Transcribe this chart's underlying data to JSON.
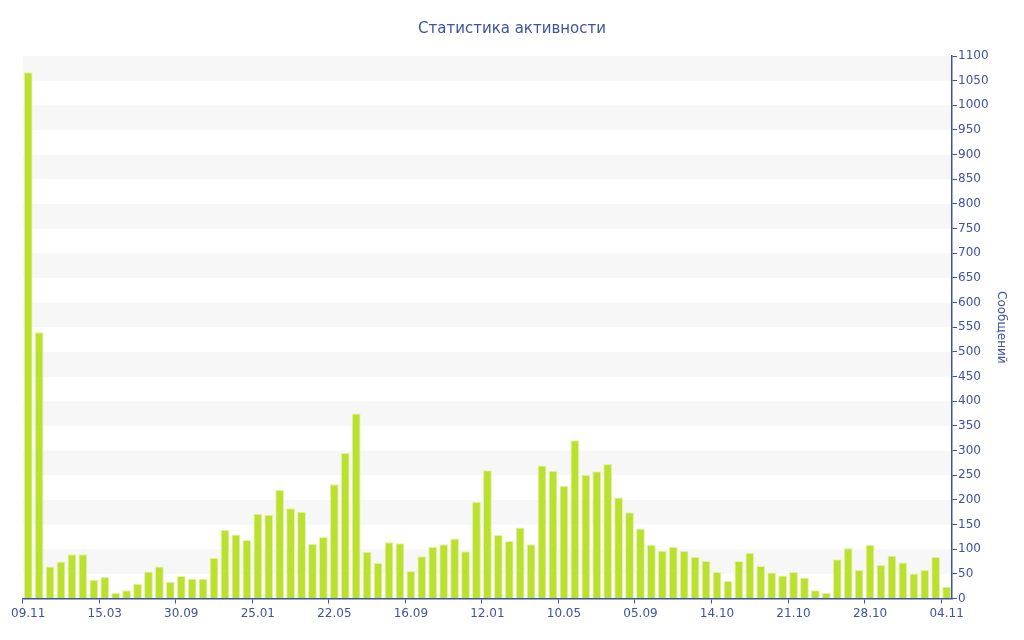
{
  "chart_data": {
    "type": "bar",
    "title": "Статистика активности",
    "ylabel": "Сообщений",
    "categories": [
      "09.11",
      null,
      null,
      null,
      null,
      null,
      null,
      "15.03",
      null,
      null,
      null,
      null,
      null,
      null,
      "30.09",
      null,
      null,
      null,
      null,
      null,
      null,
      "25.01",
      null,
      null,
      null,
      null,
      null,
      null,
      "22.05",
      null,
      null,
      null,
      null,
      null,
      null,
      "16.09",
      null,
      null,
      null,
      null,
      null,
      null,
      "12.01",
      null,
      null,
      null,
      null,
      null,
      null,
      "10.05",
      null,
      null,
      null,
      null,
      null,
      null,
      "05.09",
      null,
      null,
      null,
      null,
      null,
      null,
      "14.10",
      null,
      null,
      null,
      null,
      null,
      null,
      "21.10",
      null,
      null,
      null,
      null,
      null,
      null,
      "28.10",
      null,
      null,
      null,
      null,
      null,
      null,
      "04.11"
    ],
    "values": [
      1067,
      540,
      65,
      75,
      90,
      90,
      38,
      44,
      12,
      17,
      30,
      55,
      65,
      34,
      46,
      40,
      40,
      83,
      139,
      130,
      119,
      172,
      170,
      220,
      183,
      176,
      111,
      125,
      232,
      295,
      375,
      95,
      72,
      114,
      112,
      56,
      86,
      105,
      110,
      122,
      96,
      196,
      260,
      129,
      117,
      144,
      110,
      270,
      259,
      229,
      321,
      251,
      258,
      273,
      205,
      175,
      142,
      109,
      97,
      105,
      97,
      85,
      76,
      54,
      36,
      76,
      93,
      66,
      53,
      47,
      54,
      43,
      17,
      12,
      80,
      102,
      58,
      109,
      68,
      87,
      73,
      51,
      58,
      85,
      24
    ],
    "color": "#bbe02f",
    "ylim": [
      0,
      1100
    ],
    "yticks": [
      0,
      50,
      100,
      150,
      200,
      250,
      300,
      350,
      400,
      450,
      500,
      550,
      600,
      650,
      700,
      750,
      800,
      850,
      900,
      950,
      1000,
      1050,
      1100
    ],
    "legend": false
  }
}
